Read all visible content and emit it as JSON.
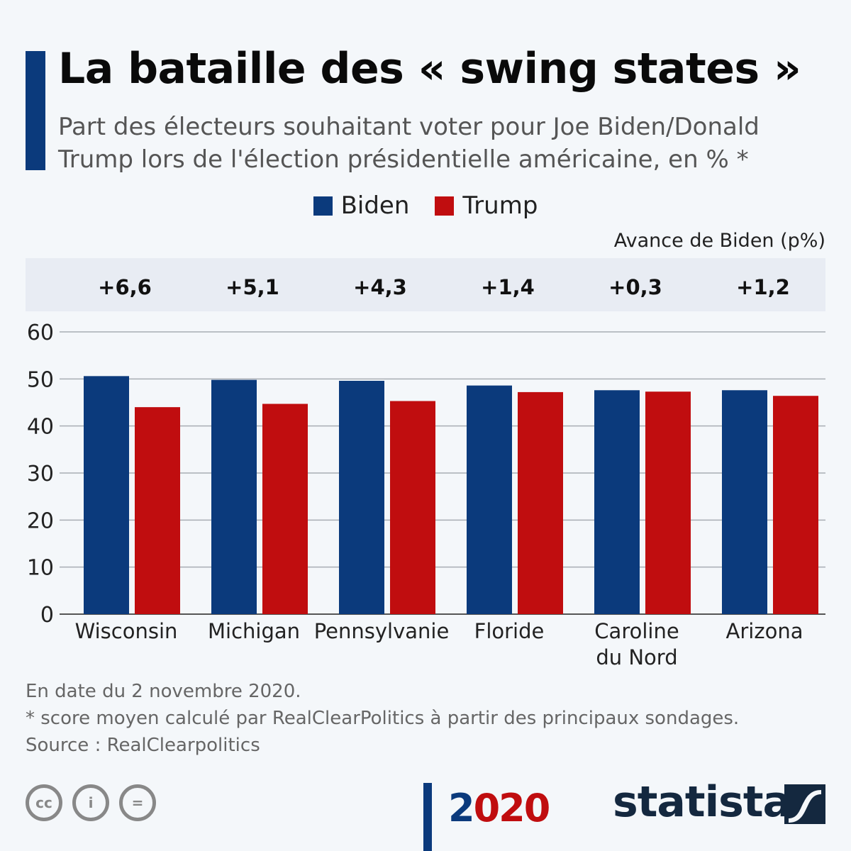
{
  "header": {
    "title": "La bataille des « swing states »",
    "subtitle": "Part des électeurs souhaitant voter pour Joe Biden/Donald Trump lors de l'élection présidentielle américaine, en % *"
  },
  "legend": [
    {
      "label": "Biden",
      "color": "#0b3a7c"
    },
    {
      "label": "Trump",
      "color": "#c00d0f"
    }
  ],
  "lead": {
    "caption": "Avance de Biden (p%)",
    "values": [
      "+6,6",
      "+5,1",
      "+4,3",
      "+1,4",
      "+0,3",
      "+1,2"
    ]
  },
  "chart_data": {
    "type": "bar",
    "title": "La bataille des « swing states »",
    "subtitle": "Part des électeurs souhaitant voter pour Joe Biden/Donald Trump lors de l'élection présidentielle américaine, en % *",
    "categories": [
      "Wisconsin",
      "Michigan",
      "Pennsylvanie",
      "Floride",
      "Caroline du Nord",
      "Arizona"
    ],
    "category_lines": [
      [
        "Wisconsin"
      ],
      [
        "Michigan"
      ],
      [
        "Pennsylvanie"
      ],
      [
        "Floride"
      ],
      [
        "Caroline",
        "du Nord"
      ],
      [
        "Arizona"
      ]
    ],
    "series": [
      {
        "name": "Biden",
        "color": "#0b3a7c",
        "values": [
          50.6,
          49.8,
          49.6,
          48.6,
          47.6,
          47.6
        ]
      },
      {
        "name": "Trump",
        "color": "#c00d0f",
        "values": [
          44.0,
          44.7,
          45.3,
          47.2,
          47.3,
          46.4
        ]
      }
    ],
    "xlabel": "",
    "ylabel": "",
    "ylim": [
      0,
      60
    ],
    "yticks": [
      0,
      10,
      20,
      30,
      40,
      50,
      60
    ],
    "grid": true,
    "legend_position": "top-center"
  },
  "notes": {
    "date": "En date du 2 novembre 2020.",
    "footnote": "* score moyen calculé par RealClearPolitics à partir des principaux sondages.",
    "source": "Source : RealClearpolitics"
  },
  "footer": {
    "license_icons": [
      "cc-icon",
      "attribution-icon",
      "no-derivatives-icon"
    ],
    "license_glyphs": [
      "cc",
      "i",
      "="
    ],
    "year_digits": [
      "2",
      "0",
      "2",
      "0"
    ],
    "brand": "statista"
  }
}
